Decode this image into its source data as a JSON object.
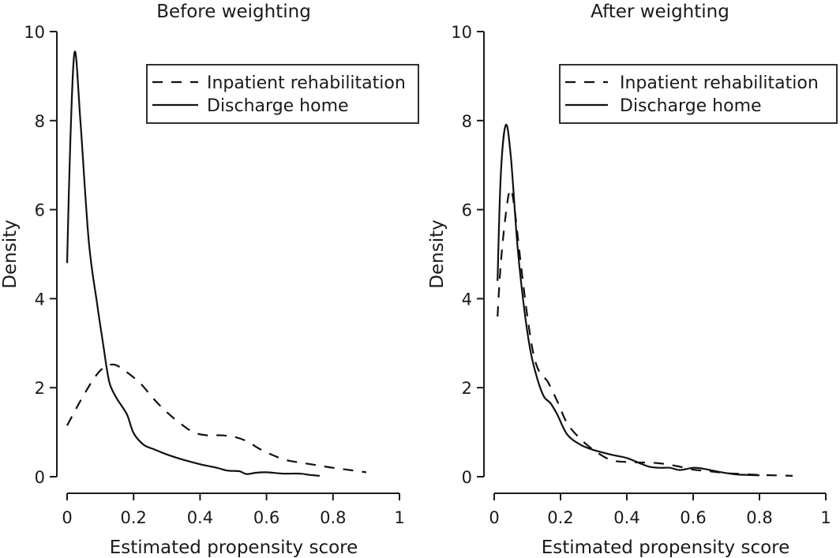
{
  "chart_data": [
    {
      "type": "line",
      "title": "Before weighting",
      "xlabel": "Estimated propensity score",
      "ylabel": "Density",
      "xlim": [
        0,
        1
      ],
      "ylim": [
        0,
        10
      ],
      "xticks": [
        0,
        0.2,
        0.4,
        0.6,
        0.8,
        1
      ],
      "xtick_labels": [
        "0",
        "0.2",
        "0.4",
        "0.6",
        "0.8",
        "1"
      ],
      "yticks": [
        0,
        2,
        4,
        6,
        8,
        10
      ],
      "ytick_labels": [
        "0",
        "2",
        "4",
        "6",
        "8",
        "10"
      ],
      "grid": false,
      "legend_position": "top-right",
      "series": [
        {
          "name": "Inpatient rehabilitation",
          "style": "dashed",
          "x": [
            0.0,
            0.04,
            0.08,
            0.11,
            0.14,
            0.17,
            0.22,
            0.26,
            0.3,
            0.34,
            0.38,
            0.42,
            0.46,
            0.5,
            0.54,
            0.58,
            0.62,
            0.66,
            0.7,
            0.75,
            0.8,
            0.85,
            0.9
          ],
          "y": [
            1.15,
            1.7,
            2.2,
            2.45,
            2.52,
            2.4,
            2.1,
            1.75,
            1.45,
            1.2,
            1.0,
            0.93,
            0.93,
            0.9,
            0.8,
            0.62,
            0.48,
            0.37,
            0.32,
            0.26,
            0.2,
            0.15,
            0.1
          ]
        },
        {
          "name": "Discharge home",
          "style": "solid",
          "x": [
            0.0,
            0.01,
            0.023,
            0.04,
            0.065,
            0.09,
            0.11,
            0.12,
            0.13,
            0.15,
            0.18,
            0.2,
            0.23,
            0.26,
            0.3,
            0.35,
            0.4,
            0.45,
            0.48,
            0.5,
            0.52,
            0.54,
            0.57,
            0.6,
            0.65,
            0.7,
            0.73,
            0.76
          ],
          "y": [
            4.8,
            7.6,
            9.55,
            8.0,
            5.3,
            3.9,
            2.9,
            2.4,
            2.05,
            1.75,
            1.4,
            0.98,
            0.72,
            0.62,
            0.5,
            0.38,
            0.28,
            0.2,
            0.14,
            0.13,
            0.12,
            0.06,
            0.09,
            0.1,
            0.07,
            0.07,
            0.04,
            0.02
          ]
        }
      ]
    },
    {
      "type": "line",
      "title": "After weighting",
      "xlabel": "Estimated propensity score",
      "ylabel": "Density",
      "xlim": [
        0,
        1
      ],
      "ylim": [
        0,
        10
      ],
      "xticks": [
        0,
        0.2,
        0.4,
        0.6,
        0.8,
        1
      ],
      "xtick_labels": [
        "0",
        "0.2",
        "0.4",
        "0.6",
        "0.8",
        "1"
      ],
      "yticks": [
        0,
        2,
        4,
        6,
        8,
        10
      ],
      "ytick_labels": [
        "0",
        "2",
        "4",
        "6",
        "8",
        "10"
      ],
      "grid": false,
      "legend_position": "top-right",
      "series": [
        {
          "name": "Inpatient rehabilitation",
          "style": "dashed",
          "x": [
            0.01,
            0.02,
            0.035,
            0.048,
            0.06,
            0.08,
            0.1,
            0.12,
            0.14,
            0.16,
            0.19,
            0.22,
            0.26,
            0.3,
            0.35,
            0.4,
            0.45,
            0.5,
            0.55,
            0.6,
            0.65,
            0.7,
            0.75,
            0.8,
            0.85,
            0.9
          ],
          "y": [
            3.6,
            4.8,
            5.9,
            6.45,
            6.1,
            4.8,
            3.6,
            2.7,
            2.3,
            2.15,
            1.7,
            1.2,
            0.85,
            0.6,
            0.38,
            0.33,
            0.32,
            0.3,
            0.24,
            0.16,
            0.12,
            0.08,
            0.06,
            0.04,
            0.03,
            0.02
          ]
        },
        {
          "name": "Discharge home",
          "style": "solid",
          "x": [
            0.01,
            0.02,
            0.035,
            0.05,
            0.07,
            0.09,
            0.11,
            0.13,
            0.15,
            0.17,
            0.19,
            0.22,
            0.26,
            0.3,
            0.35,
            0.4,
            0.44,
            0.47,
            0.5,
            0.53,
            0.56,
            0.6,
            0.63,
            0.67,
            0.72,
            0.76,
            0.8
          ],
          "y": [
            4.4,
            6.8,
            7.9,
            7.2,
            5.2,
            3.8,
            2.8,
            2.2,
            1.8,
            1.65,
            1.4,
            0.95,
            0.72,
            0.6,
            0.5,
            0.42,
            0.3,
            0.22,
            0.2,
            0.2,
            0.15,
            0.2,
            0.18,
            0.12,
            0.06,
            0.04,
            0.03
          ]
        }
      ]
    }
  ]
}
